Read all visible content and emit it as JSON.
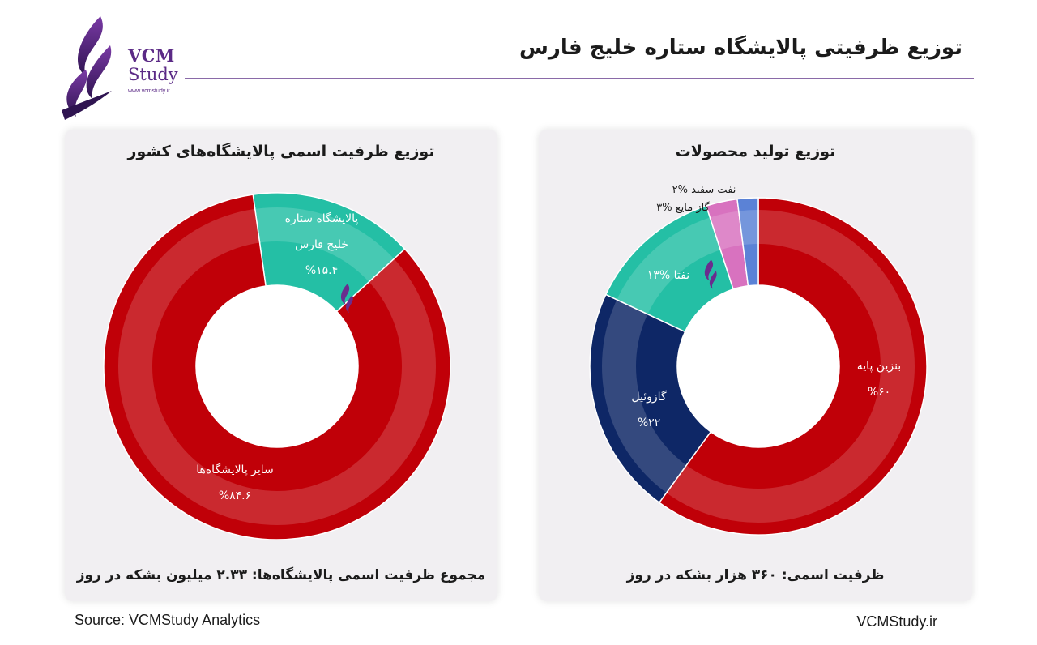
{
  "header": {
    "title": "توزیع ظرفیتی پالایشگاه ستاره خلیج فارس"
  },
  "logo": {
    "name_line1": "VCM",
    "name_line2": "Study",
    "url": "www.vcmstudy.ir"
  },
  "colors": {
    "red": "#c00008",
    "teal": "#24bfa5",
    "navy": "#0e2766",
    "pink": "#d872bf",
    "blue": "#5b82d6",
    "accent": "#6a2c8e"
  },
  "chart_data": [
    {
      "type": "pie",
      "title": "توزیع ظرفیت اسمی پالایشگاه‌های کشور",
      "footer": "مجموع ظرفیت اسمی پالایشگاه‌ها: ۲.۳۳ میلیون بشکه در روز",
      "slices": [
        {
          "name": "پالایشگاه ستاره خلیج فارس",
          "line1": "پالایشگاه ستاره",
          "line2": "خلیج فارس",
          "value": 15.4,
          "value_label": "%۱۵.۴",
          "color": "#24bfa5"
        },
        {
          "name": "سایر پالایشگاه‌ها",
          "line1": "سایر پالایشگاه‌ها",
          "line2": "",
          "value": 84.6,
          "value_label": "%۸۴.۶",
          "color": "#c00008"
        }
      ]
    },
    {
      "type": "pie",
      "title": "توزیع تولید محصولات",
      "footer": "ظرفیت اسمی: ۳۶۰ هزار بشکه در روز",
      "slices": [
        {
          "name": "بنزین پایه",
          "value": 60,
          "value_label": "%۶۰",
          "color": "#c00008"
        },
        {
          "name": "گازوئیل",
          "value": 22,
          "value_label": "%۲۲",
          "color": "#0e2766"
        },
        {
          "name": "نفتا",
          "value": 13,
          "value_label": "%۱۳",
          "color": "#24bfa5"
        },
        {
          "name": "گاز مایع",
          "value": 3,
          "value_label": "%۳",
          "color": "#d872bf"
        },
        {
          "name": "نفت سفید",
          "value": 2,
          "value_label": "%۲",
          "color": "#5b82d6"
        }
      ]
    }
  ],
  "footer": {
    "source": "Source: VCMStudy Analytics",
    "site": "VCMStudy.ir"
  }
}
